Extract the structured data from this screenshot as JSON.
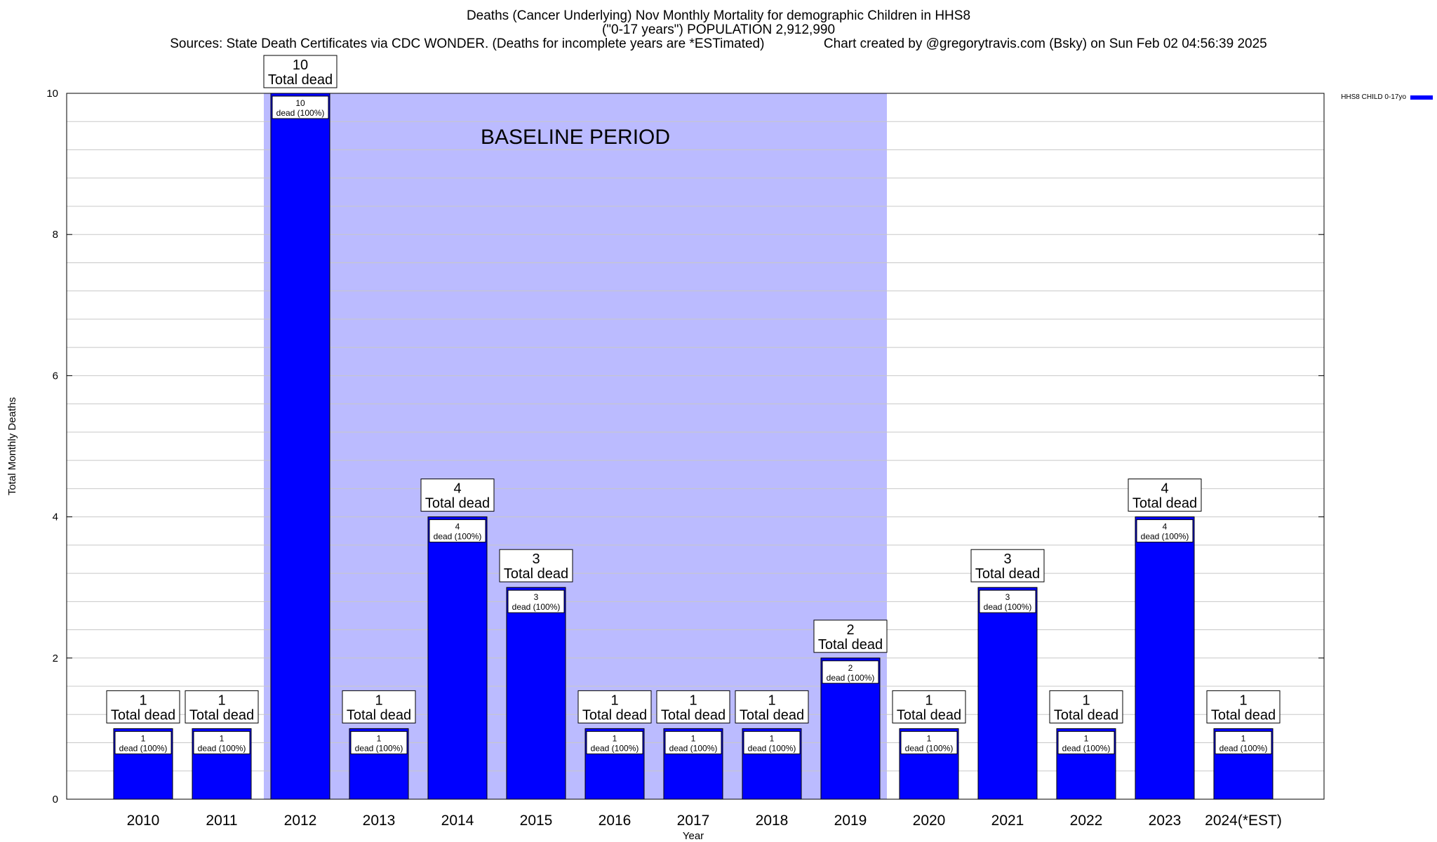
{
  "title": {
    "line1": "Deaths (Cancer Underlying) Nov Monthly Mortality for demographic Children in HHS8",
    "line2": "(\"0-17 years\") POPULATION 2,912,990",
    "line3": "Sources: State Death Certificates via CDC WONDER. (Deaths for incomplete years are *ESTimated)                Chart created by @gregorytravis.com (Bsky) on Sun Feb 02 04:56:39 2025"
  },
  "chart_data": {
    "type": "bar",
    "title": "Deaths (Cancer Underlying) Nov Monthly Mortality for demographic Children in HHS8",
    "xlabel": "Year",
    "ylabel": "Total Monthly Deaths",
    "ylim": [
      0,
      10
    ],
    "yticks": [
      "0",
      "2",
      "4",
      "6",
      "8",
      "10"
    ],
    "grid": true,
    "legend_position": "top-right",
    "categories": [
      "2010",
      "2011",
      "2012",
      "2013",
      "2014",
      "2015",
      "2016",
      "2017",
      "2018",
      "2019",
      "2020",
      "2021",
      "2022",
      "2023",
      "2024(*EST)"
    ],
    "series": [
      {
        "name": "HHS8 CHILD 0-17yo",
        "color": "#0000ff",
        "values": [
          1,
          1,
          10,
          1,
          4,
          3,
          1,
          1,
          1,
          2,
          1,
          3,
          1,
          4,
          1
        ]
      }
    ],
    "bar_labels": {
      "total_line1": [
        "1",
        "1",
        "10",
        "1",
        "4",
        "3",
        "1",
        "1",
        "1",
        "2",
        "1",
        "3",
        "1",
        "4",
        "1"
      ],
      "total_line2": "Total dead",
      "inner_line1": [
        "1",
        "1",
        "10",
        "1",
        "4",
        "3",
        "1",
        "1",
        "1",
        "2",
        "1",
        "3",
        "1",
        "4",
        "1"
      ],
      "inner_line2": "dead (100%)"
    },
    "annotation": {
      "text": "BASELINE PERIOD",
      "from_category": "2012",
      "to_category": "2019",
      "color": "#bbbbff"
    }
  }
}
